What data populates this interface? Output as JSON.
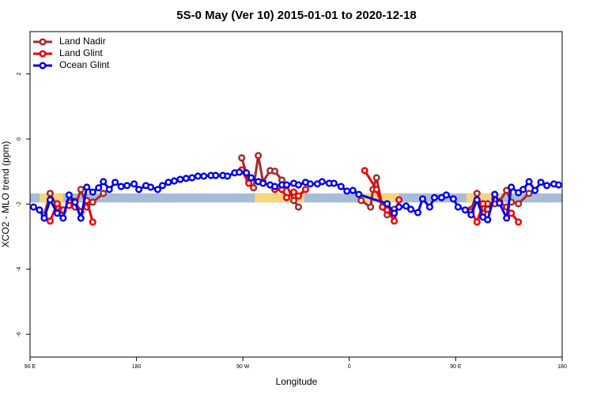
{
  "chart_data": {
    "type": "line",
    "title": "5S-0 May (Ver 10)   2015-01-01 to 2020-12-18",
    "x_label": "Longitude",
    "y_label": "XCO2 - MLO trend (ppm)",
    "xlim": [
      90,
      540
    ],
    "xticks": [
      {
        "value": 90,
        "label": "90 E"
      },
      180,
      {
        "value": 270,
        "label": "90 W"
      },
      {
        "value": 360,
        "label": "0"
      },
      {
        "value": 450,
        "label": "90 E"
      },
      {
        "value": 540,
        "label": "180"
      }
    ],
    "ylim": [
      -6.7,
      3.3
    ],
    "yticks": [
      -6,
      -4,
      -2,
      0,
      2
    ],
    "legend": "top-left",
    "bands": [
      {
        "color": "#a7bcd9",
        "xlim": [
          90,
          540
        ],
        "ylim": [
          -1.95,
          -1.67
        ]
      },
      {
        "color": "#f7d57c",
        "xlim": [
          98,
          118
        ],
        "ylim": [
          -1.95,
          -1.67
        ]
      },
      {
        "color": "#f7d57c",
        "xlim": [
          280,
          322
        ],
        "ylim": [
          -1.95,
          -1.67
        ]
      },
      {
        "color": "#f7d57c",
        "xlim": [
          369,
          402
        ],
        "ylim": [
          -1.95,
          -1.67
        ]
      },
      {
        "color": "#f7d57c",
        "xlim": [
          459,
          489
        ],
        "ylim": [
          -1.95,
          -1.67
        ]
      }
    ],
    "series": [
      {
        "name": "Land Nadir",
        "color": "#a52a2a",
        "x": [
          102,
          107,
          113,
          118,
          123,
          128,
          133,
          138,
          143,
          152,
          null,
          269,
          275,
          279,
          283,
          287,
          293,
          297,
          303,
          307,
          313,
          317,
          null,
          370,
          378,
          380,
          383,
          388,
          392,
          398,
          null,
          463,
          468,
          473,
          477,
          483,
          487,
          493,
          497,
          503,
          512
        ],
        "values": [
          -2.33,
          -1.67,
          -2.09,
          -2.21,
          -1.94,
          -2.09,
          -1.55,
          -2.09,
          -1.94,
          -1.67,
          null,
          -0.58,
          -1.31,
          -1.5,
          -0.51,
          -1.31,
          -0.97,
          -0.99,
          -1.26,
          -1.43,
          -1.89,
          -2.09,
          null,
          -1.89,
          -2.09,
          -1.55,
          -1.19,
          -2.09,
          -2.33,
          -2.16,
          null,
          -2.16,
          -1.67,
          -2.28,
          -1.99,
          -1.99,
          -1.92,
          -1.58,
          -1.94,
          -1.99,
          -1.67
        ]
      },
      {
        "name": "Land Glint",
        "color": "#ee0000",
        "x": [
          107,
          113,
          118,
          123,
          128,
          133,
          138,
          143,
          null,
          269,
          275,
          null,
          297,
          303,
          307,
          313,
          317,
          323,
          null,
          373,
          383,
          388,
          392,
          398,
          402,
          null,
          463,
          468,
          473,
          477,
          483,
          493,
          497,
          503
        ],
        "values": [
          -2.52,
          -1.99,
          -2.18,
          -2.04,
          -1.92,
          -2.23,
          -1.89,
          -2.55,
          null,
          -0.95,
          -1.36,
          null,
          -1.55,
          -1.55,
          -1.8,
          -1.63,
          -1.75,
          -1.55,
          null,
          -0.97,
          -1.55,
          -2.09,
          -2.18,
          -2.52,
          -1.87,
          null,
          -2.23,
          -2.55,
          -1.99,
          -2.16,
          -1.84,
          -2.09,
          -2.28,
          -2.55
        ]
      },
      {
        "name": "Ocean Glint",
        "color": "#0000ee",
        "x": [
          93,
          98,
          102,
          107,
          113,
          118,
          123,
          128,
          133,
          138,
          143,
          148,
          152,
          157,
          162,
          167,
          172,
          178,
          182,
          188,
          192,
          198,
          202,
          207,
          212,
          217,
          222,
          227,
          232,
          237,
          243,
          247,
          253,
          257,
          263,
          267,
          273,
          277,
          283,
          287,
          293,
          297,
          303,
          307,
          313,
          317,
          323,
          327,
          333,
          337,
          343,
          347,
          353,
          358,
          363,
          368,
          392,
          398,
          402,
          408,
          412,
          418,
          422,
          428,
          432,
          438,
          442,
          448,
          452,
          458,
          463,
          468,
          473,
          477,
          483,
          487,
          493,
          497,
          503,
          507,
          512,
          517,
          522,
          527,
          533,
          537
        ],
        "values": [
          -2.09,
          -2.18,
          -2.43,
          -1.87,
          -2.28,
          -2.43,
          -1.72,
          -1.94,
          -2.43,
          -1.48,
          -1.63,
          -1.5,
          -1.31,
          -1.55,
          -1.33,
          -1.46,
          -1.43,
          -1.38,
          -1.55,
          -1.43,
          -1.48,
          -1.55,
          -1.43,
          -1.33,
          -1.29,
          -1.24,
          -1.21,
          -1.19,
          -1.14,
          -1.14,
          -1.12,
          -1.12,
          -1.12,
          -1.14,
          -1.04,
          -1.02,
          -1.04,
          -1.19,
          -1.31,
          -1.36,
          -1.41,
          -1.46,
          -1.41,
          -1.41,
          -1.36,
          -1.41,
          -1.33,
          -1.38,
          -1.38,
          -1.31,
          -1.36,
          -1.36,
          -1.46,
          -1.6,
          -1.58,
          -1.7,
          -1.99,
          -2.28,
          -2.09,
          -2.06,
          -2.16,
          -2.26,
          -1.84,
          -2.09,
          -1.8,
          -1.8,
          -1.72,
          -1.84,
          -2.09,
          -2.18,
          -2.33,
          -1.87,
          -2.4,
          -2.48,
          -1.7,
          -1.97,
          -2.43,
          -1.48,
          -1.65,
          -1.55,
          -1.31,
          -1.58,
          -1.33,
          -1.43,
          -1.38,
          -1.41
        ]
      }
    ]
  }
}
